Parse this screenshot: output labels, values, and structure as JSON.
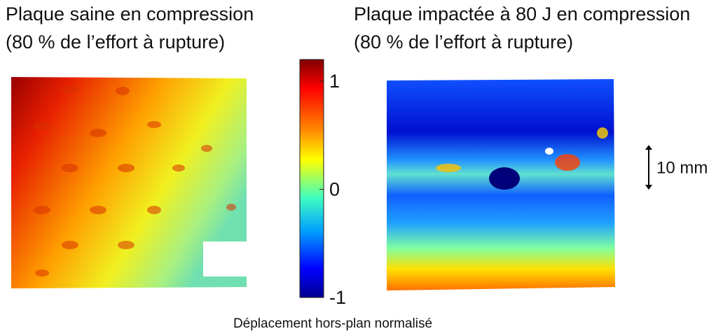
{
  "left_title": {
    "line1": "Plaque saine en compression",
    "line2": "(80 % de l’effort à rupture)"
  },
  "right_title": {
    "line1": "Plaque impactée à 80 J en compression",
    "line2": "(80 % de l’effort à rupture)"
  },
  "colorbar": {
    "range": [
      -1,
      1.2
    ],
    "ticks": [
      1,
      0,
      -1
    ]
  },
  "scale_bar": {
    "label": "10 mm"
  },
  "caption": "Déplacement hors-plan normalisé"
}
